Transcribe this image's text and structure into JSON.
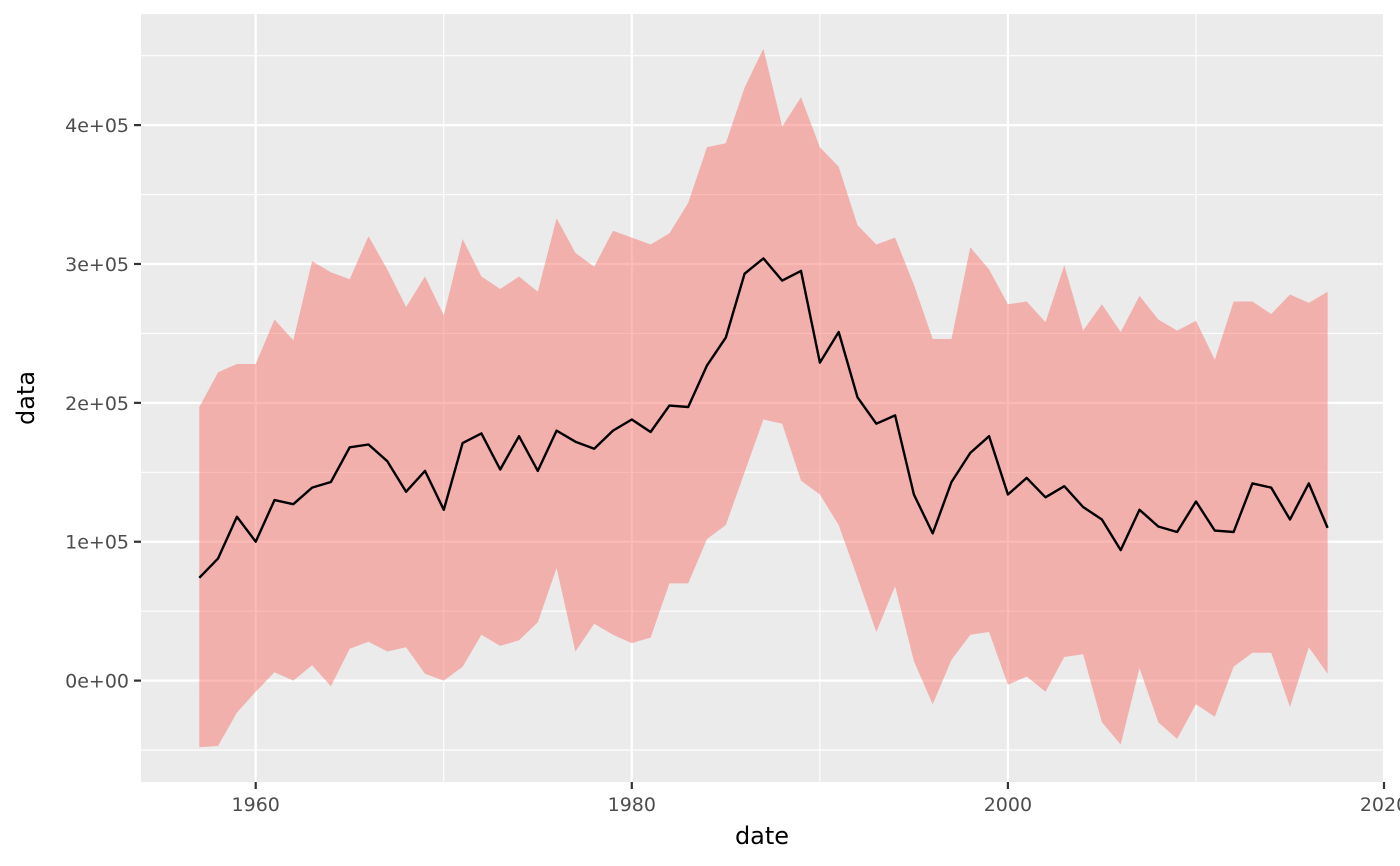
{
  "chart_data": {
    "type": "area",
    "title": "",
    "xlabel": "date",
    "ylabel": "data",
    "xlim": [
      1953.9,
      2020.0
    ],
    "ylim": [
      -73000,
      480000
    ],
    "x_ticks": [
      1960,
      1980,
      2000,
      2020
    ],
    "x_tick_labels": [
      "1960",
      "1980",
      "2000",
      "2020"
    ],
    "y_ticks": [
      0,
      100000,
      200000,
      300000,
      400000
    ],
    "y_tick_labels": [
      "0e+00",
      "1e+05",
      "2e+05",
      "3e+05",
      "4e+05"
    ],
    "grid": true,
    "colors": {
      "panel_background": "#ebebeb",
      "grid_major": "#ffffff",
      "ribbon_fill": "#f8766d",
      "ribbon_alpha": 0.5,
      "line": "#000000",
      "tick_text": "#4d4d4d",
      "title_text": "#000000"
    },
    "x": [
      1957,
      1958,
      1959,
      1960,
      1961,
      1962,
      1963,
      1964,
      1965,
      1966,
      1967,
      1968,
      1969,
      1970,
      1971,
      1972,
      1973,
      1974,
      1975,
      1976,
      1977,
      1978,
      1979,
      1980,
      1981,
      1982,
      1983,
      1984,
      1985,
      1986,
      1987,
      1988,
      1989,
      1990,
      1991,
      1992,
      1993,
      1994,
      1995,
      1996,
      1997,
      1998,
      1999,
      2000,
      2001,
      2002,
      2003,
      2004,
      2005,
      2006,
      2007,
      2008,
      2009,
      2010,
      2011,
      2012,
      2013,
      2014,
      2015,
      2016,
      2017
    ],
    "series": [
      {
        "type": "line",
        "values": [
          74000,
          88000,
          118000,
          100000,
          130000,
          127000,
          139000,
          143000,
          168000,
          170000,
          158000,
          136000,
          151000,
          123000,
          171000,
          178000,
          152000,
          176000,
          151000,
          180000,
          172000,
          167000,
          180000,
          188000,
          179000,
          198000,
          197000,
          227000,
          247000,
          293000,
          304000,
          288000,
          295000,
          229000,
          251000,
          204000,
          185000,
          191000,
          134000,
          106000,
          143000,
          164000,
          176000,
          134000,
          146000,
          132000,
          140000,
          125000,
          116000,
          94000,
          123000,
          111000,
          107000,
          129000,
          108000,
          107000,
          142000,
          139000,
          116000,
          142000,
          110000
        ]
      },
      {
        "type": "ribbon",
        "upper": [
          197000,
          222000,
          228000,
          228000,
          260000,
          245000,
          302000,
          294000,
          289000,
          320000,
          296000,
          269000,
          291000,
          263000,
          318000,
          291000,
          282000,
          291000,
          280000,
          333000,
          308000,
          298000,
          324000,
          319000,
          314000,
          322000,
          344000,
          384000,
          387000,
          427000,
          455000,
          399000,
          420000,
          384000,
          370000,
          328000,
          314000,
          319000,
          285000,
          246000,
          246000,
          312000,
          296000,
          271000,
          273000,
          258000,
          299000,
          252000,
          271000,
          251000,
          277000,
          260000,
          252000,
          259000,
          231000,
          273000,
          273000,
          264000,
          278000,
          272000,
          280000
        ],
        "lower": [
          -48000,
          -47000,
          -23000,
          -8000,
          6000,
          0,
          11000,
          -4000,
          23000,
          28000,
          21000,
          24000,
          5000,
          0,
          10000,
          33000,
          25000,
          29000,
          42000,
          81000,
          21000,
          41000,
          33000,
          27000,
          31000,
          70000,
          70000,
          102000,
          112000,
          150000,
          188000,
          185000,
          144000,
          134000,
          112000,
          74000,
          35000,
          68000,
          14000,
          -17000,
          15000,
          33000,
          35000,
          -3000,
          3000,
          -8000,
          17000,
          19000,
          -30000,
          -46000,
          9000,
          -30000,
          -42000,
          -17000,
          -26000,
          10000,
          20000,
          20000,
          -19000,
          24000,
          5000
        ]
      }
    ]
  }
}
